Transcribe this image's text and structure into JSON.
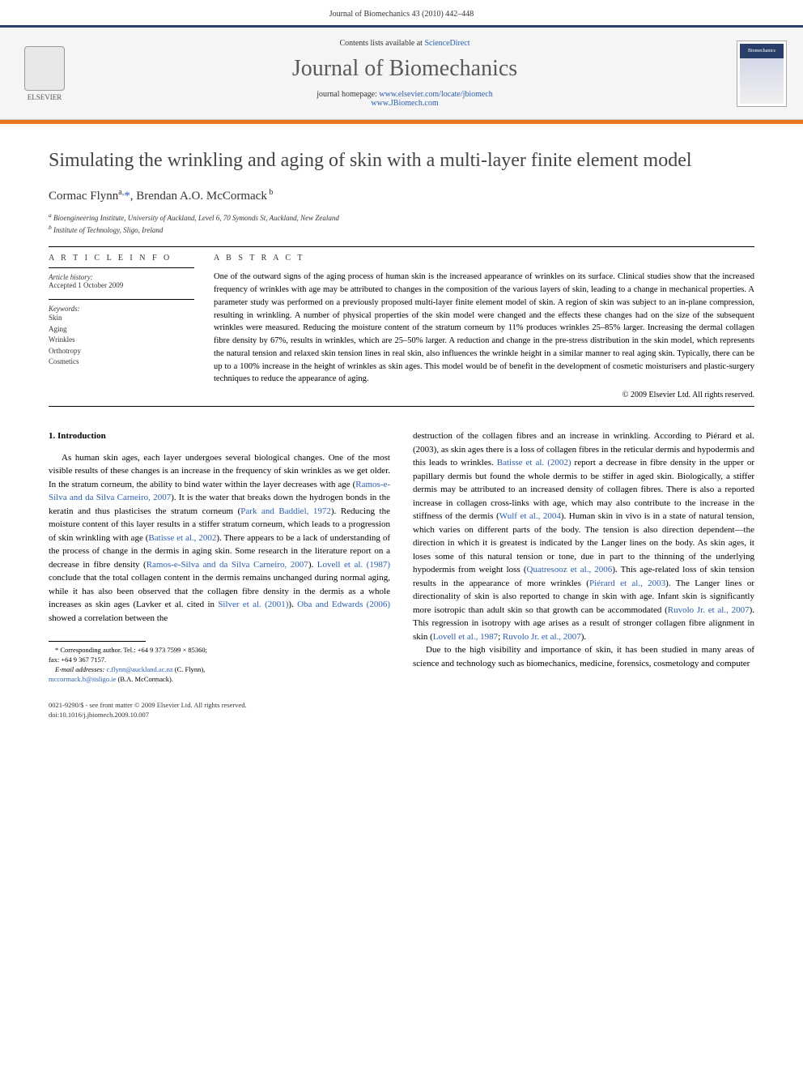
{
  "page_header": "Journal of Biomechanics 43 (2010) 442–448",
  "header": {
    "contents_text": "Contents lists available at ",
    "contents_link": "ScienceDirect",
    "journal_title": "Journal of Biomechanics",
    "homepage_label": "journal homepage: ",
    "homepage_url1": "www.elsevier.com/locate/jbiomech",
    "homepage_url2": "www.JBiomech.com",
    "publisher": "ELSEVIER",
    "cover_text": "Biomechanics"
  },
  "article": {
    "title": "Simulating the wrinkling and aging of skin with a multi-layer finite element model",
    "authors_html": "Cormac Flynn <sup>a,</sup>",
    "author1": "Cormac Flynn",
    "author1_sup": "a,",
    "author1_star": "*",
    "author_sep": ", ",
    "author2": "Brendan A.O. McCormack",
    "author2_sup": "b",
    "affiliations": {
      "a": "Bioengineering Institute, University of Auckland, Level 6, 70 Symonds St, Auckland, New Zealand",
      "b": "Institute of Technology, Sligo, Ireland"
    }
  },
  "info": {
    "heading": "A R T I C L E  I N F O",
    "history_label": "Article history:",
    "history": "Accepted 1 October 2009",
    "keywords_label": "Keywords:",
    "keywords": [
      "Skin",
      "Aging",
      "Wrinkles",
      "Orthotropy",
      "Cosmetics"
    ]
  },
  "abstract": {
    "heading": "A B S T R A C T",
    "text": "One of the outward signs of the aging process of human skin is the increased appearance of wrinkles on its surface. Clinical studies show that the increased frequency of wrinkles with age may be attributed to changes in the composition of the various layers of skin, leading to a change in mechanical properties. A parameter study was performed on a previously proposed multi-layer finite element model of skin. A region of skin was subject to an in-plane compression, resulting in wrinkling. A number of physical properties of the skin model were changed and the effects these changes had on the size of the subsequent wrinkles were measured. Reducing the moisture content of the stratum corneum by 11% produces wrinkles 25–85% larger. Increasing the dermal collagen fibre density by 67%, results in wrinkles, which are 25–50% larger. A reduction and change in the pre-stress distribution in the skin model, which represents the natural tension and relaxed skin tension lines in real skin, also influences the wrinkle height in a similar manner to real aging skin. Typically, there can be up to a 100% increase in the height of wrinkles as skin ages. This model would be of benefit in the development of cosmetic moisturisers and plastic-surgery techniques to reduce the appearance of aging.",
    "copyright": "© 2009 Elsevier Ltd. All rights reserved."
  },
  "body": {
    "section_number": "1.",
    "section_title": "Introduction",
    "col1_p1_a": "As human skin ages, each layer undergoes several biological changes. One of the most visible results of these changes is an increase in the frequency of skin wrinkles as we get older. In the stratum corneum, the ability to bind water within the layer decreases with age (",
    "col1_link1": "Ramos-e-Silva and da Silva Carneiro, 2007",
    "col1_p1_b": "). It is the water that breaks down the hydrogen bonds in the keratin and thus plasticises the stratum corneum (",
    "col1_link2": "Park and Baddiel, 1972",
    "col1_p1_c": "). Reducing the moisture content of this layer results in a stiffer stratum corneum, which leads to a progression of skin wrinkling with age (",
    "col1_link3": "Batisse et al., 2002",
    "col1_p1_d": "). There appears to be a lack of understanding of the process of change in the dermis in aging skin. Some research in the literature report on a decrease in fibre density (",
    "col1_link4": "Ramos-e-Silva and da Silva Carneiro, 2007",
    "col1_p1_e": "). ",
    "col1_link5": "Lovell et al. (1987)",
    "col1_p1_f": " conclude that the total collagen content in the dermis remains unchanged during normal aging, while it has also been observed that the collagen fibre density in the dermis as a whole increases as skin ages (Lavker et al. cited in ",
    "col1_link6": "Silver et al. (2001)",
    "col1_p1_g": "). ",
    "col1_link7": "Oba and Edwards (2006)",
    "col1_p1_h": " showed a correlation between the",
    "col2_p1_a": "destruction of the collagen fibres and an increase in wrinkling. According to Piérard et al. (2003), as skin ages there is a loss of collagen fibres in the reticular dermis and hypodermis and this leads to wrinkles. ",
    "col2_link1": "Batisse et al. (2002)",
    "col2_p1_b": " report a decrease in fibre density in the upper or papillary dermis but found the whole dermis to be stiffer in aged skin. Biologically, a stiffer dermis may be attributed to an increased density of collagen fibres. There is also a reported increase in collagen cross-links with age, which may also contribute to the increase in the stiffness of the dermis (",
    "col2_link2": "Wulf et al., 2004",
    "col2_p1_c": "). Human skin in vivo is in a state of natural tension, which varies on different parts of the body. The tension is also direction dependent—the direction in which it is greatest is indicated by the Langer lines on the body. As skin ages, it loses some of this natural tension or tone, due in part to the thinning of the underlying hypodermis from weight loss (",
    "col2_link3": "Quatresooz et al., 2006",
    "col2_p1_d": "). This age-related loss of skin tension results in the appearance of more wrinkles (",
    "col2_link4": "Piérard et al., 2003",
    "col2_p1_e": "). The Langer lines or directionality of skin is also reported to change in skin with age. Infant skin is significantly more isotropic than adult skin so that growth can be accommodated (",
    "col2_link5": "Ruvolo Jr. et al., 2007",
    "col2_p1_f": "). This regression in isotropy with age arises as a result of stronger collagen fibre alignment in skin (",
    "col2_link6": "Lovell et al., 1987",
    "col2_sep": "; ",
    "col2_link7": "Ruvolo Jr. et al., 2007",
    "col2_p1_g": ").",
    "col2_p2": "Due to the high visibility and importance of skin, it has been studied in many areas of science and technology such as biomechanics, medicine, forensics, cosmetology and computer"
  },
  "footnotes": {
    "corr_label": "* Corresponding author. Tel.: +64 9 373 7599 × 85360;",
    "fax": "fax: +64 9 367 7157.",
    "email_label": "E-mail addresses:",
    "email1": "c.flynn@auckland.ac.nz",
    "email1_name": "(C. Flynn),",
    "email2": "mccormack.b@itsligo.ie",
    "email2_name": "(B.A. McCormack)."
  },
  "footer": {
    "line1": "0021-9290/$ - see front matter © 2009 Elsevier Ltd. All rights reserved.",
    "line2": "doi:10.1016/j.jbiomech.2009.10.007"
  },
  "colors": {
    "top_bar": "#2a3e6a",
    "orange": "#e87722",
    "link": "#2a5db0",
    "title_gray": "#444444"
  }
}
